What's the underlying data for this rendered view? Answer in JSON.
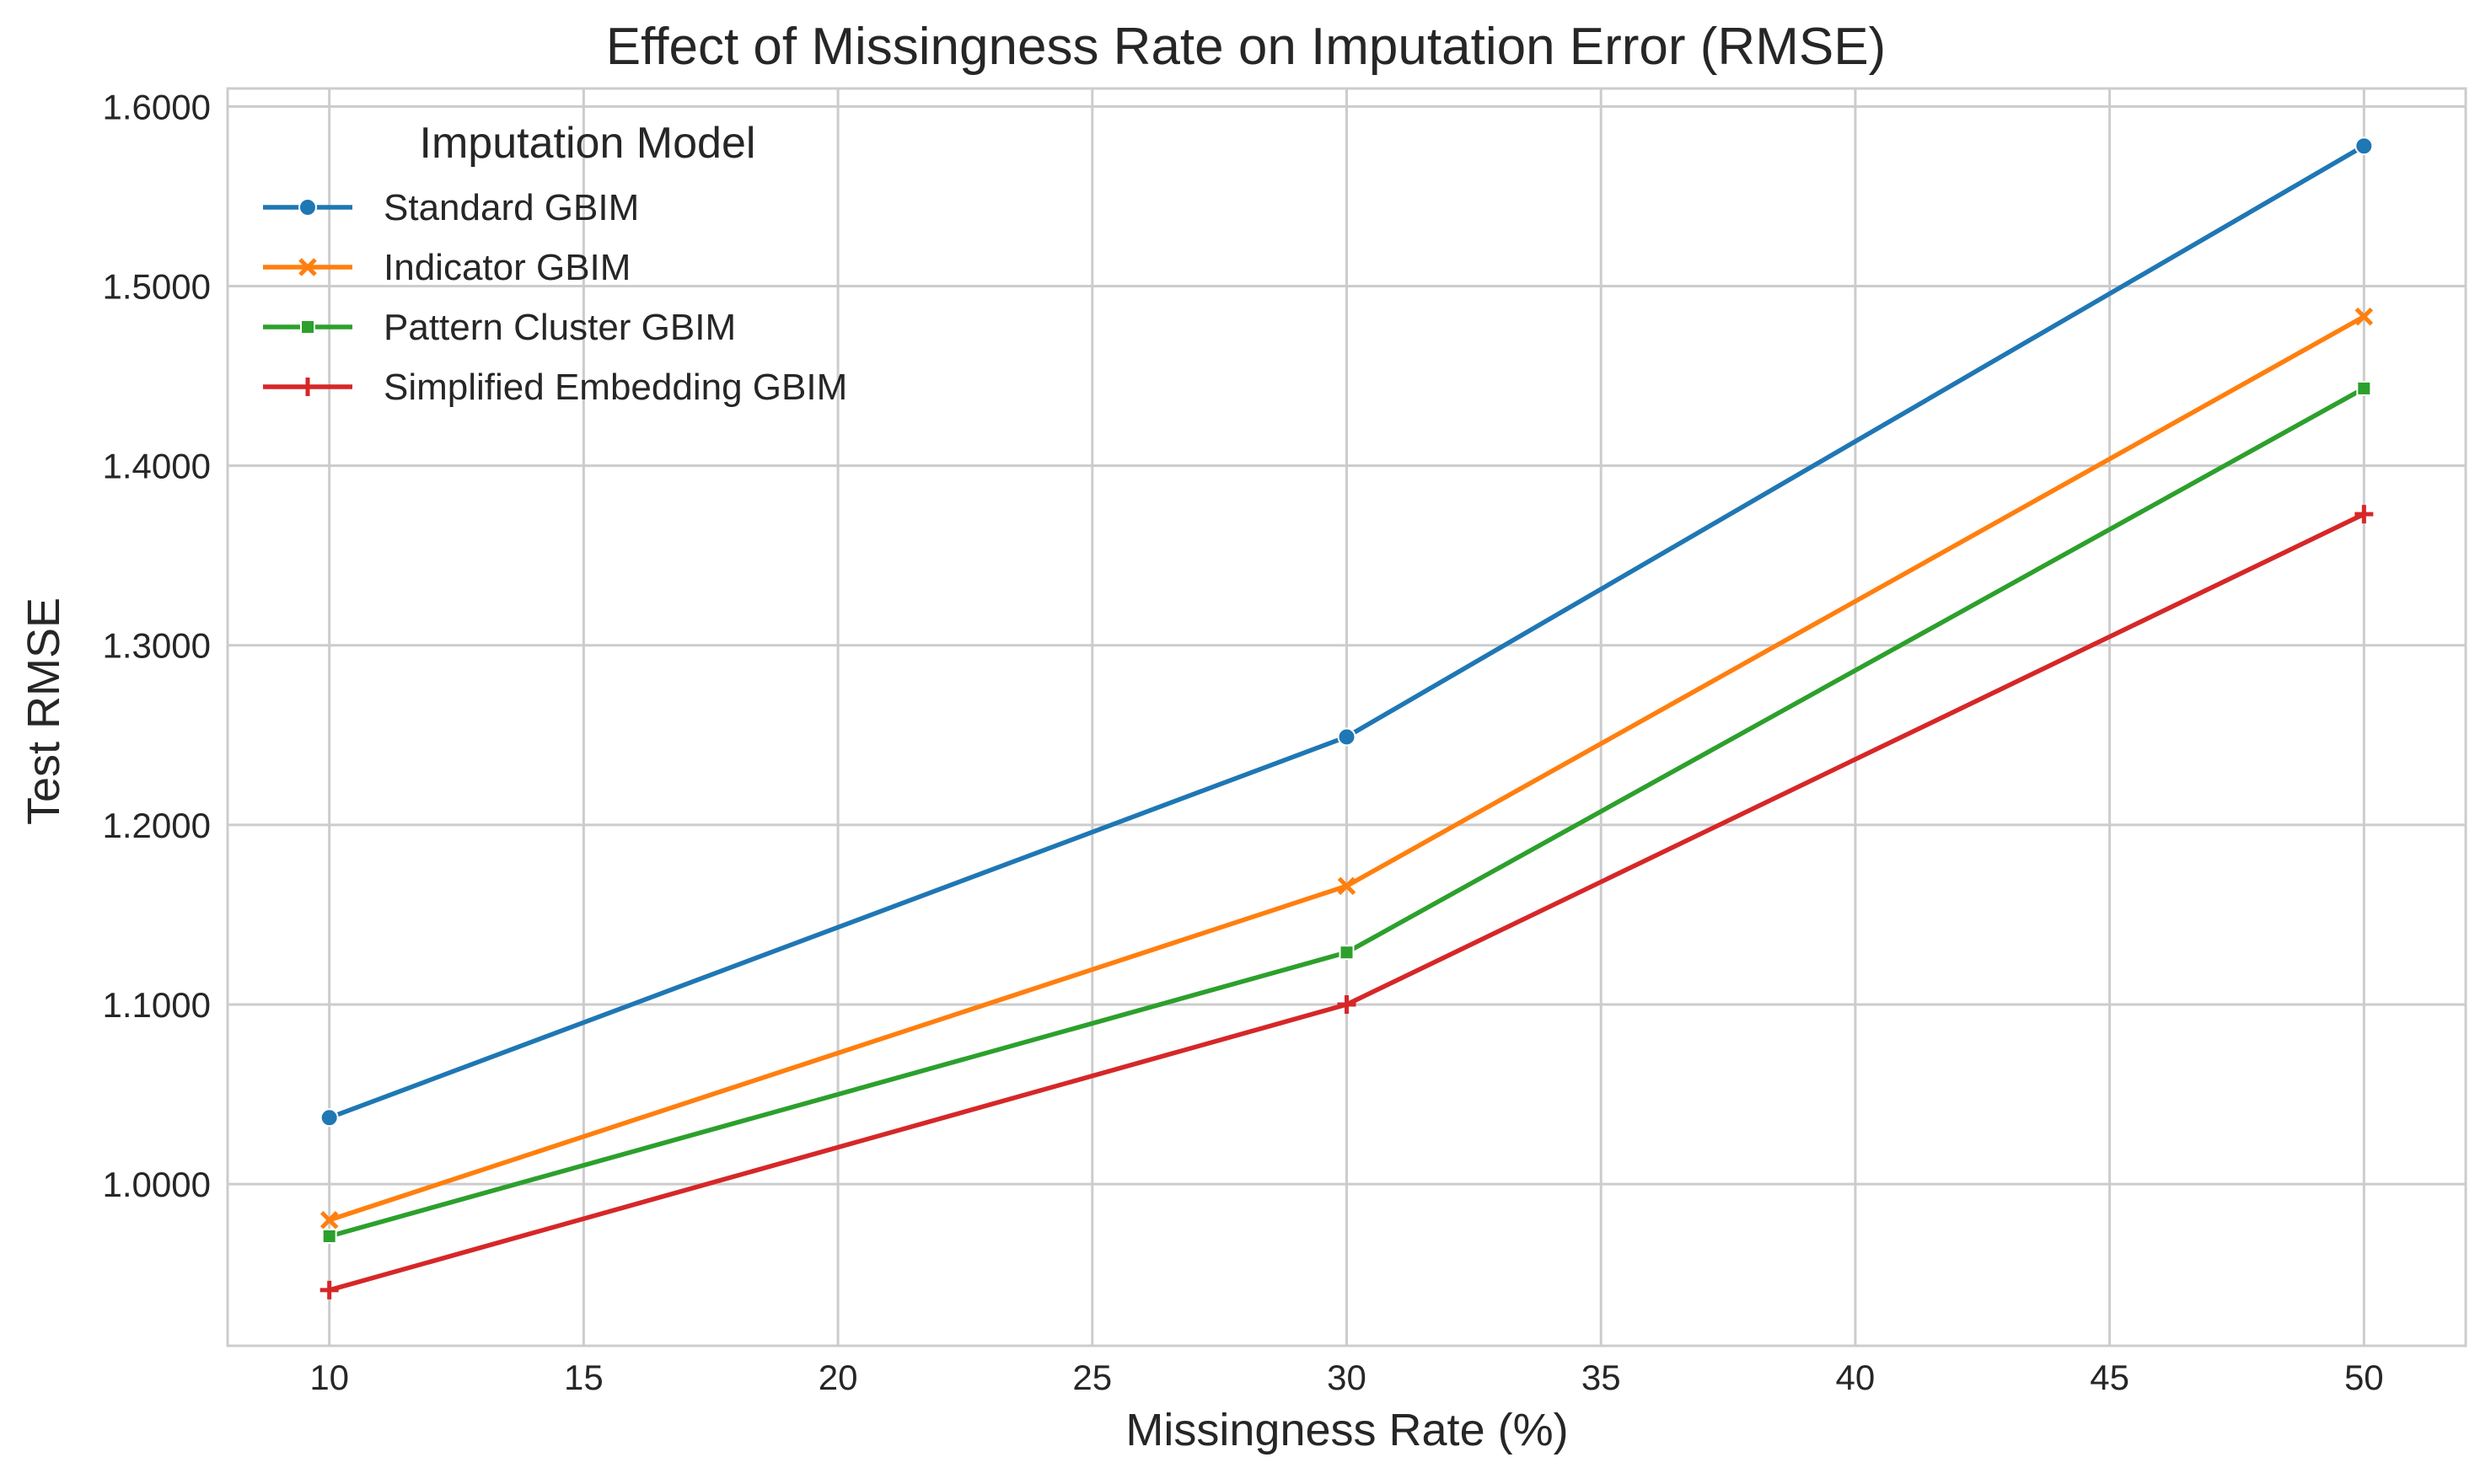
{
  "chart_data": {
    "type": "line",
    "title": "Effect of Missingness Rate on Imputation Error (RMSE)",
    "xlabel": "Missingness Rate (%)",
    "ylabel": "Test RMSE",
    "x": [
      10,
      30,
      50
    ],
    "xlim": [
      8,
      52
    ],
    "ylim": [
      0.91,
      1.61
    ],
    "x_ticks": [
      10,
      15,
      20,
      25,
      30,
      35,
      40,
      45,
      50
    ],
    "y_ticks": [
      1.0,
      1.1,
      1.2,
      1.3,
      1.4,
      1.5,
      1.6
    ],
    "x_tick_labels": [
      "10",
      "15",
      "20",
      "25",
      "30",
      "35",
      "40",
      "45",
      "50"
    ],
    "y_tick_labels": [
      "1.0000",
      "1.1000",
      "1.2000",
      "1.3000",
      "1.4000",
      "1.5000",
      "1.6000"
    ],
    "grid": true,
    "legend": {
      "title": "Imputation Model",
      "placement": "top-left"
    },
    "series": [
      {
        "name": "Standard GBIM",
        "values": [
          1.037,
          1.249,
          1.578
        ],
        "color": "#1f77b4",
        "marker": "circle"
      },
      {
        "name": "Indicator GBIM",
        "values": [
          0.98,
          1.166,
          1.483
        ],
        "color": "#ff7f0e",
        "marker": "x"
      },
      {
        "name": "Pattern Cluster GBIM",
        "values": [
          0.971,
          1.129,
          1.443
        ],
        "color": "#2ca02c",
        "marker": "square"
      },
      {
        "name": "Simplified Embedding GBIM",
        "values": [
          0.941,
          1.1,
          1.373
        ],
        "color": "#d62728",
        "marker": "plus"
      }
    ]
  }
}
